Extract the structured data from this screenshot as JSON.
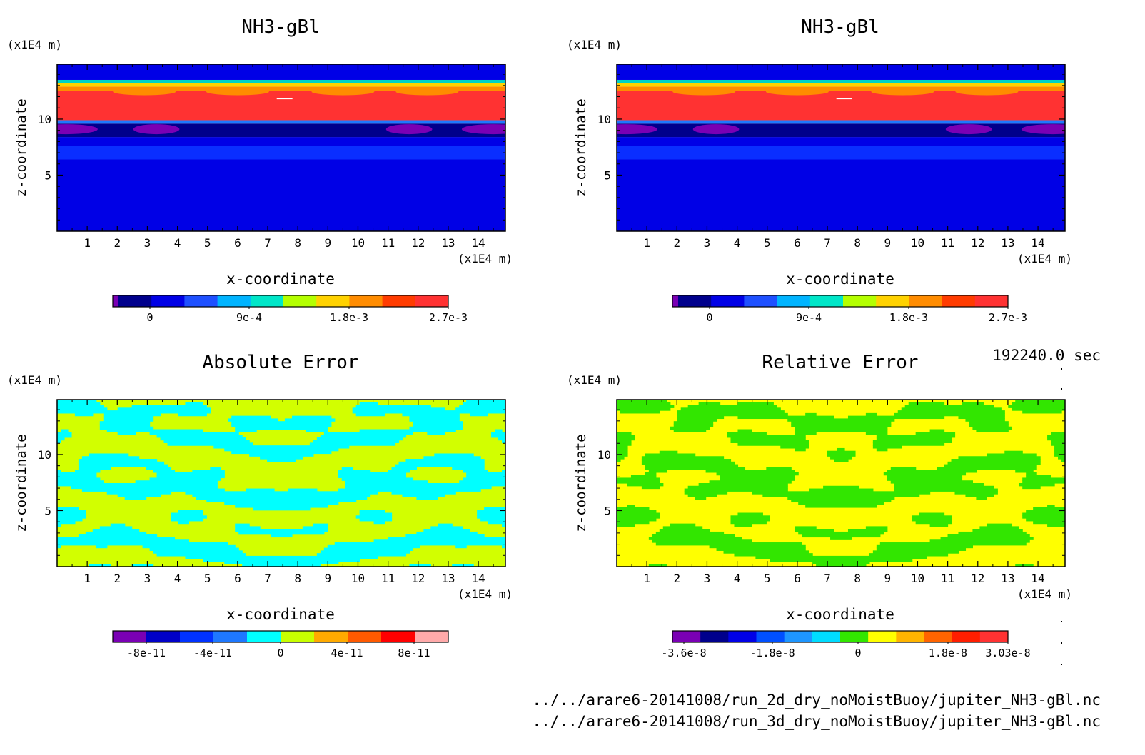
{
  "time_label": "192240.0 sec",
  "files": [
    "../../arare6-20141008/run_2d_dry_noMoistBuoy/jupiter_NH3-gBl.nc",
    "../../arare6-20141008/run_3d_dry_noMoistBuoy/jupiter_NH3-gBl.nc"
  ],
  "chart_data": [
    {
      "type": "heatmap",
      "title": "NH3-gBl",
      "xlabel": "x-coordinate",
      "ylabel": "z-coordinate",
      "x_unit": "(x1E4 m)",
      "y_unit": "(x1E4 m)",
      "xlim": [
        0,
        14.9
      ],
      "ylim": [
        0,
        14.9
      ],
      "xticks": [
        1,
        2,
        3,
        4,
        5,
        6,
        7,
        8,
        9,
        10,
        11,
        12,
        13,
        14
      ],
      "yticks": [
        5,
        10
      ],
      "colorbar": {
        "colors": [
          "#7a00b4",
          "#00008c",
          "#0000e6",
          "#1e50ff",
          "#00b4ff",
          "#00e6c8",
          "#b4ff00",
          "#ffd200",
          "#ff8c00",
          "#ff3c00",
          "#ff3232"
        ],
        "tick_labels": [
          "0",
          "9e-4",
          "1.8e-3",
          "2.7e-3"
        ]
      },
      "bands": [
        {
          "z": [
            0,
            6.4
          ],
          "color": "#0000e6"
        },
        {
          "z": [
            6.4,
            7.6
          ],
          "color": "#0a2eff"
        },
        {
          "z": [
            7.6,
            8.4
          ],
          "color": "#0000e6"
        },
        {
          "z": [
            8.4,
            9.6
          ],
          "color": "#00008c"
        },
        {
          "z": [
            9.6,
            9.9
          ],
          "color": "#1e78ff"
        },
        {
          "z": [
            9.9,
            12.5
          ],
          "color": "#ff3232"
        },
        {
          "z": [
            12.5,
            12.9
          ],
          "color": "#ff8c00"
        },
        {
          "z": [
            12.9,
            13.2
          ],
          "color": "#ffd200"
        },
        {
          "z": [
            13.2,
            13.5
          ],
          "color": "#00d2c8"
        },
        {
          "z": [
            13.5,
            14.9
          ],
          "color": "#0000e6"
        }
      ]
    },
    {
      "type": "heatmap",
      "title": "NH3-gBl",
      "xlabel": "x-coordinate",
      "ylabel": "z-coordinate",
      "x_unit": "(x1E4 m)",
      "y_unit": "(x1E4 m)",
      "xlim": [
        0,
        14.9
      ],
      "ylim": [
        0,
        14.9
      ],
      "xticks": [
        1,
        2,
        3,
        4,
        5,
        6,
        7,
        8,
        9,
        10,
        11,
        12,
        13,
        14
      ],
      "yticks": [
        5,
        10
      ],
      "colorbar": {
        "colors": [
          "#7a00b4",
          "#00008c",
          "#0000e6",
          "#1e50ff",
          "#00b4ff",
          "#00e6c8",
          "#b4ff00",
          "#ffd200",
          "#ff8c00",
          "#ff3c00",
          "#ff3232"
        ],
        "tick_labels": [
          "0",
          "9e-4",
          "1.8e-3",
          "2.7e-3"
        ]
      },
      "bands": [
        {
          "z": [
            0,
            6.4
          ],
          "color": "#0000e6"
        },
        {
          "z": [
            6.4,
            7.6
          ],
          "color": "#0a2eff"
        },
        {
          "z": [
            7.6,
            8.4
          ],
          "color": "#0000e6"
        },
        {
          "z": [
            8.4,
            9.6
          ],
          "color": "#00008c"
        },
        {
          "z": [
            9.6,
            9.9
          ],
          "color": "#1e78ff"
        },
        {
          "z": [
            9.9,
            12.5
          ],
          "color": "#ff3232"
        },
        {
          "z": [
            12.5,
            12.9
          ],
          "color": "#ff8c00"
        },
        {
          "z": [
            12.9,
            13.2
          ],
          "color": "#ffd200"
        },
        {
          "z": [
            13.2,
            13.5
          ],
          "color": "#00d2c8"
        },
        {
          "z": [
            13.5,
            14.9
          ],
          "color": "#0000e6"
        }
      ]
    },
    {
      "type": "heatmap",
      "title": "Absolute Error",
      "xlabel": "x-coordinate",
      "ylabel": "z-coordinate",
      "x_unit": "(x1E4 m)",
      "y_unit": "(x1E4 m)",
      "xlim": [
        0,
        14.9
      ],
      "ylim": [
        0,
        14.9
      ],
      "xticks": [
        1,
        2,
        3,
        4,
        5,
        6,
        7,
        8,
        9,
        10,
        11,
        12,
        13,
        14
      ],
      "yticks": [
        5,
        10
      ],
      "colorbar": {
        "colors": [
          "#7a00b4",
          "#0000c8",
          "#0032ff",
          "#1e78ff",
          "#00ffff",
          "#c8ff00",
          "#ffaa00",
          "#ff5a00",
          "#ff0000",
          "#ffaaaa"
        ],
        "tick_labels": [
          "-8e-11",
          "-4e-11",
          "0",
          "4e-11",
          "8e-11"
        ]
      },
      "pattern": {
        "base": "#d2ff00",
        "alt": "#00ffff"
      }
    },
    {
      "type": "heatmap",
      "title": "Relative Error",
      "xlabel": "x-coordinate",
      "ylabel": "z-coordinate",
      "x_unit": "(x1E4 m)",
      "y_unit": "(x1E4 m)",
      "xlim": [
        0,
        14.9
      ],
      "ylim": [
        0,
        14.9
      ],
      "xticks": [
        1,
        2,
        3,
        4,
        5,
        6,
        7,
        8,
        9,
        10,
        11,
        12,
        13,
        14
      ],
      "yticks": [
        5,
        10
      ],
      "colorbar": {
        "colors": [
          "#7a00b4",
          "#00008c",
          "#0000e6",
          "#0050ff",
          "#1e96ff",
          "#00dcff",
          "#32e600",
          "#ffff00",
          "#ffb400",
          "#ff6400",
          "#ff1e00",
          "#ff3232"
        ],
        "tick_labels": [
          "-3.6e-8",
          "-1.8e-8",
          "0",
          "1.8e-8",
          "3.03e-8"
        ]
      },
      "pattern": {
        "base": "#ffff00",
        "alt": "#32e600"
      }
    }
  ]
}
